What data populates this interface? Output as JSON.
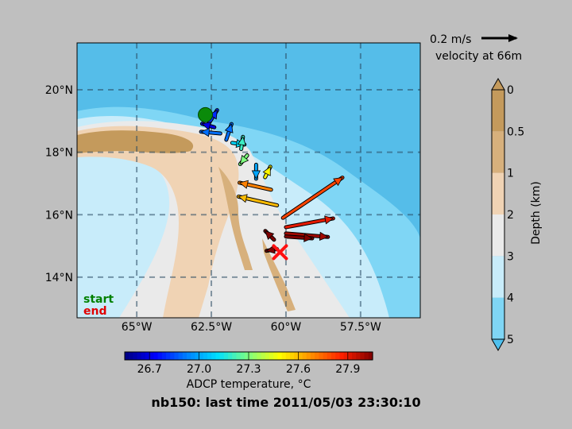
{
  "title": "nb150: last time 2011/05/03 23:30:10",
  "scale_label": "0.2 m/s",
  "velocity_label": "velocity at 66m",
  "legend": {
    "start": "start",
    "end": "end",
    "start_color": "#008000",
    "end_color": "#e00000"
  },
  "chart_data": {
    "type": "map",
    "map": {
      "lon_range": [
        -67,
        -55.5
      ],
      "lat_range": [
        12.7,
        21.5
      ],
      "x_ticks": [
        {
          "lon": -65,
          "label": "65°W"
        },
        {
          "lon": -62.5,
          "label": "62.5°W"
        },
        {
          "lon": -60,
          "label": "60°W"
        },
        {
          "lon": -57.5,
          "label": "57.5°W"
        }
      ],
      "y_ticks": [
        {
          "lat": 20,
          "label": "20°N"
        },
        {
          "lat": 18,
          "label": "18°N"
        },
        {
          "lat": 16,
          "label": "16°N"
        },
        {
          "lat": 14,
          "label": "14°N"
        }
      ],
      "grid": true,
      "track_start": {
        "lon": -62.7,
        "lat": 19.2
      },
      "track_end": {
        "lon": -60.2,
        "lat": 14.8
      }
    },
    "temperature_colorbar": {
      "label": "ADCP temperature, °C",
      "ticks": [
        "26.7",
        "27.0",
        "27.3",
        "27.6",
        "27.9"
      ],
      "range": [
        26.55,
        28.05
      ],
      "colors": [
        "#00007f",
        "#0000ff",
        "#0080ff",
        "#00e0ff",
        "#7fff7f",
        "#ffff00",
        "#ff9000",
        "#ff2000",
        "#7f0000"
      ]
    },
    "depth_colorbar": {
      "label": "Depth (km)",
      "ticks": [
        "0",
        "0.5",
        "1",
        "2",
        "3",
        "4",
        "5"
      ],
      "colors": [
        "#c49a5c",
        "#d7b07c",
        "#f0d3b4",
        "#eaeaea",
        "#c8ecfa",
        "#7fd6f5",
        "#4fc0ee"
      ]
    },
    "vectors": [
      {
        "lon": -62.6,
        "lat": 18.9,
        "u": 0.05,
        "v": 0.08,
        "temp": 26.8
      },
      {
        "lon": -62.4,
        "lat": 18.8,
        "u": -0.07,
        "v": 0.02,
        "temp": 26.7
      },
      {
        "lon": -62.2,
        "lat": 18.6,
        "u": -0.11,
        "v": 0.01,
        "temp": 26.9
      },
      {
        "lon": -62.0,
        "lat": 18.4,
        "u": 0.03,
        "v": 0.09,
        "temp": 26.9
      },
      {
        "lon": -61.8,
        "lat": 18.3,
        "u": 0.07,
        "v": -0.01,
        "temp": 27.1
      },
      {
        "lon": -61.5,
        "lat": 18.1,
        "u": 0.01,
        "v": 0.07,
        "temp": 27.2
      },
      {
        "lon": -61.3,
        "lat": 17.9,
        "u": -0.04,
        "v": -0.05,
        "temp": 27.3
      },
      {
        "lon": -61.0,
        "lat": 17.6,
        "u": 0.0,
        "v": -0.08,
        "temp": 27.0
      },
      {
        "lon": -60.7,
        "lat": 17.2,
        "u": 0.03,
        "v": 0.06,
        "temp": 27.5
      },
      {
        "lon": -60.5,
        "lat": 16.8,
        "u": -0.18,
        "v": 0.04,
        "temp": 27.7
      },
      {
        "lon": -60.3,
        "lat": 16.3,
        "u": -0.22,
        "v": 0.05,
        "temp": 27.6
      },
      {
        "lon": -60.1,
        "lat": 15.9,
        "u": 0.34,
        "v": 0.23,
        "temp": 27.8
      },
      {
        "lon": -60.0,
        "lat": 15.6,
        "u": 0.27,
        "v": 0.05,
        "temp": 27.9
      },
      {
        "lon": -60.0,
        "lat": 15.4,
        "u": 0.24,
        "v": -0.02,
        "temp": 28.0
      },
      {
        "lon": -60.0,
        "lat": 15.3,
        "u": 0.15,
        "v": -0.01,
        "temp": 28.05
      },
      {
        "lon": -60.4,
        "lat": 15.2,
        "u": -0.05,
        "v": 0.05,
        "temp": 28.05
      },
      {
        "lon": -60.3,
        "lat": 14.9,
        "u": -0.06,
        "v": -0.01,
        "temp": 28.05
      }
    ]
  }
}
